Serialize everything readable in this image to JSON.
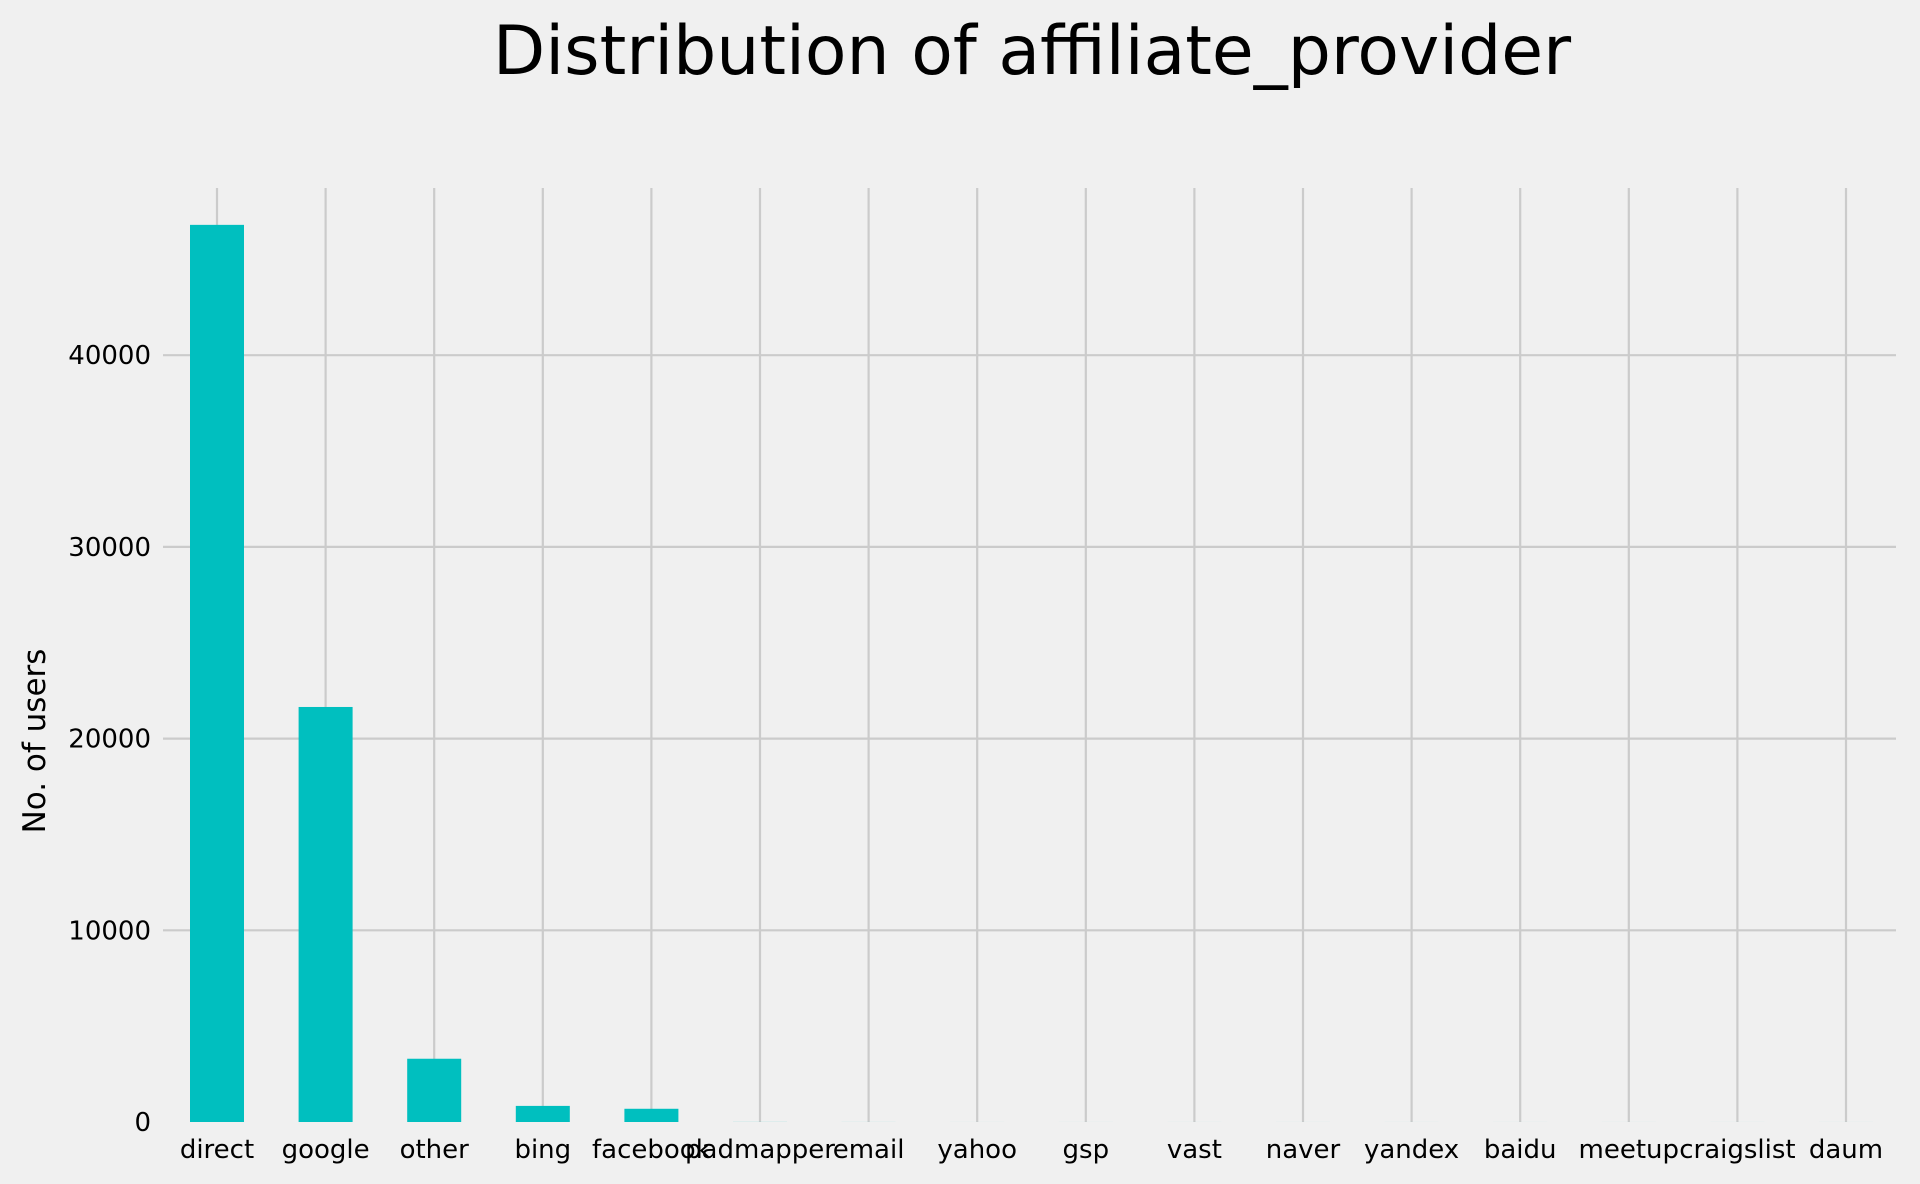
{
  "chart_data": {
    "type": "bar",
    "title": "Distribution of affiliate_provider",
    "xlabel": "",
    "ylabel": "No. of users",
    "categories": [
      "direct",
      "google",
      "other",
      "bing",
      "facebook",
      "padmapper",
      "email",
      "yahoo",
      "gsp",
      "vast",
      "naver",
      "yandex",
      "baidu",
      "meetup",
      "craigslist",
      "daum"
    ],
    "values": [
      46800,
      21650,
      3300,
      840,
      690,
      4,
      2,
      1,
      1,
      1,
      1,
      1,
      1,
      1,
      1,
      1
    ],
    "yticks": [
      0,
      10000,
      20000,
      30000,
      40000
    ],
    "ylim": [
      0,
      49140
    ],
    "grid": true,
    "legend": "none",
    "bar_color": "#00bfbf",
    "background_color": "#f0f0f0",
    "grid_color": "#cbcbcb"
  }
}
